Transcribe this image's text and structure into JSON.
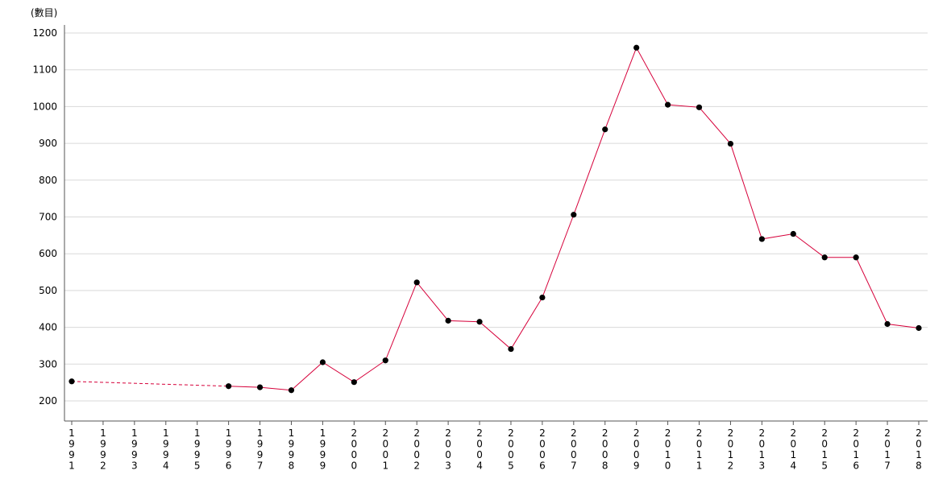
{
  "chart_data": {
    "type": "line",
    "ylabel": "(數目)",
    "xlabel": "",
    "title": "",
    "ylim": [
      145,
      1225
    ],
    "yticks": [
      200,
      300,
      400,
      500,
      600,
      700,
      800,
      900,
      1000,
      1100,
      1200
    ],
    "categories": [
      "1991",
      "1992",
      "1993",
      "1994",
      "1995",
      "1996",
      "1997",
      "1998",
      "1999",
      "2000",
      "2001",
      "2002",
      "2003",
      "2004",
      "2005",
      "2006",
      "2007",
      "2008",
      "2009",
      "2010",
      "2011",
      "2012",
      "2013",
      "2014",
      "2015",
      "2016",
      "2017",
      "2018"
    ],
    "series": [
      {
        "values": [
          253,
          null,
          null,
          null,
          null,
          240,
          237,
          229,
          305,
          251,
          310,
          522,
          418,
          415,
          341,
          481,
          706,
          938,
          1160,
          1005,
          998,
          899,
          640,
          654,
          590,
          590,
          409,
          398
        ],
        "color": "#d6003a",
        "marker_color": "#000000",
        "interpolate_gap_dashed": true
      }
    ],
    "grid": true,
    "legend": "none"
  }
}
